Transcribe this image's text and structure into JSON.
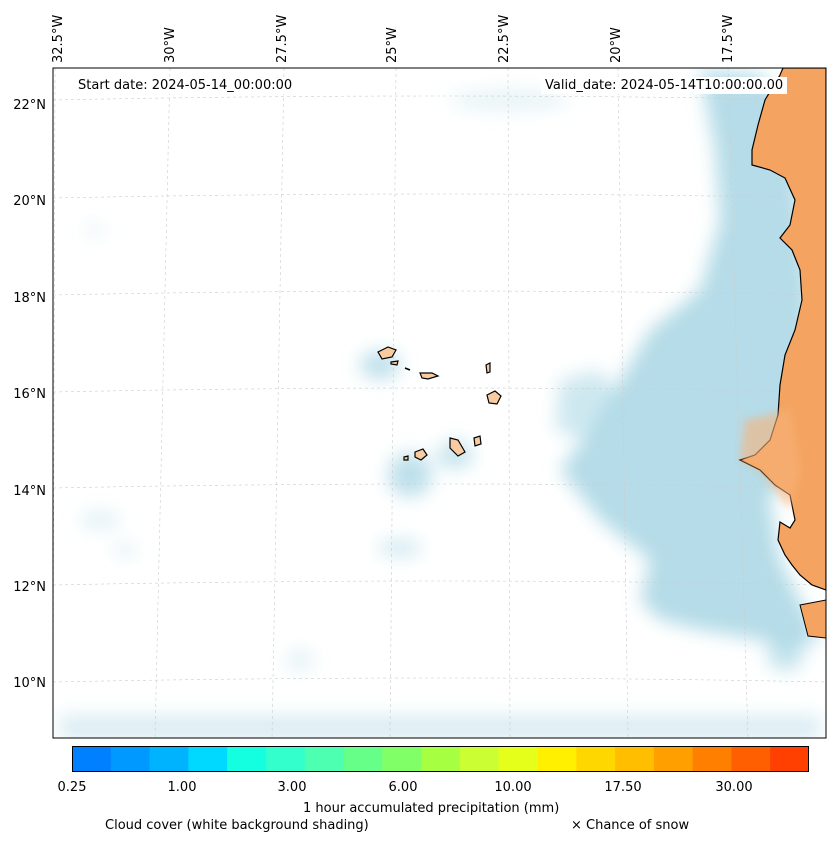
{
  "map": {
    "start_date": "Start date: 2024-05-14_00:00:00",
    "valid_date": "Valid_date: 2024-05-14T10:00:00.00",
    "lon_labels": [
      "32.5°W",
      "30°W",
      "27.5°W",
      "25°W",
      "22.5°W",
      "20°W",
      "17.5°W"
    ],
    "lat_labels": [
      "22°N",
      "20°N",
      "18°N",
      "16°N",
      "14°N",
      "12°N",
      "10°N"
    ],
    "colors": {
      "land": "#f4a460",
      "islands": "#f8cba0",
      "ocean": "#ffffff",
      "cloud": "#add8e6"
    }
  },
  "colorbar": {
    "label": "1 hour accumulated precipitation (mm)",
    "ticks": [
      "0.25",
      "1.00",
      "3.00",
      "6.00",
      "10.00",
      "17.50",
      "30.00"
    ],
    "colors": [
      "#0080ff",
      "#0099ff",
      "#00b3ff",
      "#00d9ff",
      "#14ffe0",
      "#33ffcc",
      "#4dffb0",
      "#66ff88",
      "#80ff66",
      "#a6ff40",
      "#ccff33",
      "#e6ff1a",
      "#fff000",
      "#ffd700",
      "#ffbf00",
      "#ff9f00",
      "#ff7f00",
      "#ff5f00",
      "#ff4000"
    ]
  },
  "legend": {
    "cloud_cover": "Cloud cover (white background shading)",
    "snow": "× Chance of snow"
  }
}
